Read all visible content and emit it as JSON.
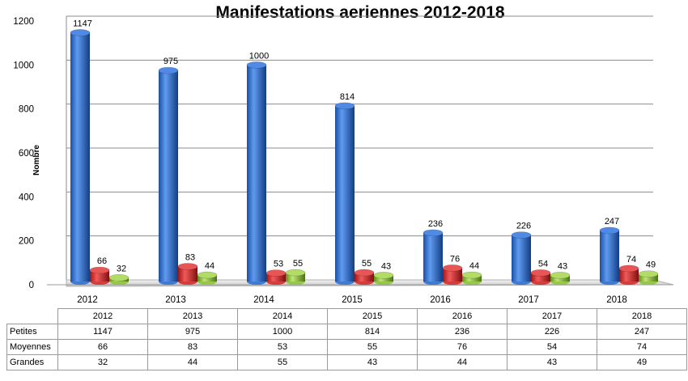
{
  "chart_data": {
    "type": "bar",
    "title": "Manifestations aeriennes 2012-2018",
    "ylabel": "Nombre",
    "xlabel": "",
    "ylim": [
      0,
      1200
    ],
    "yticks": [
      "0",
      "200",
      "400",
      "600",
      "800",
      "1000",
      "1200"
    ],
    "grid": true,
    "categories": [
      "2012",
      "2013",
      "2014",
      "2015",
      "2016",
      "2017",
      "2018"
    ],
    "series": [
      {
        "name": "Petites",
        "values": [
          1147,
          975,
          1000,
          814,
          236,
          226,
          247
        ],
        "color": "#2e6fd1"
      },
      {
        "name": "Moyennes",
        "values": [
          66,
          83,
          53,
          55,
          76,
          54,
          74
        ],
        "color": "#d42a2a"
      },
      {
        "name": "Grandes",
        "values": [
          32,
          44,
          55,
          43,
          44,
          43,
          49
        ],
        "color": "#8fc43a"
      }
    ]
  }
}
